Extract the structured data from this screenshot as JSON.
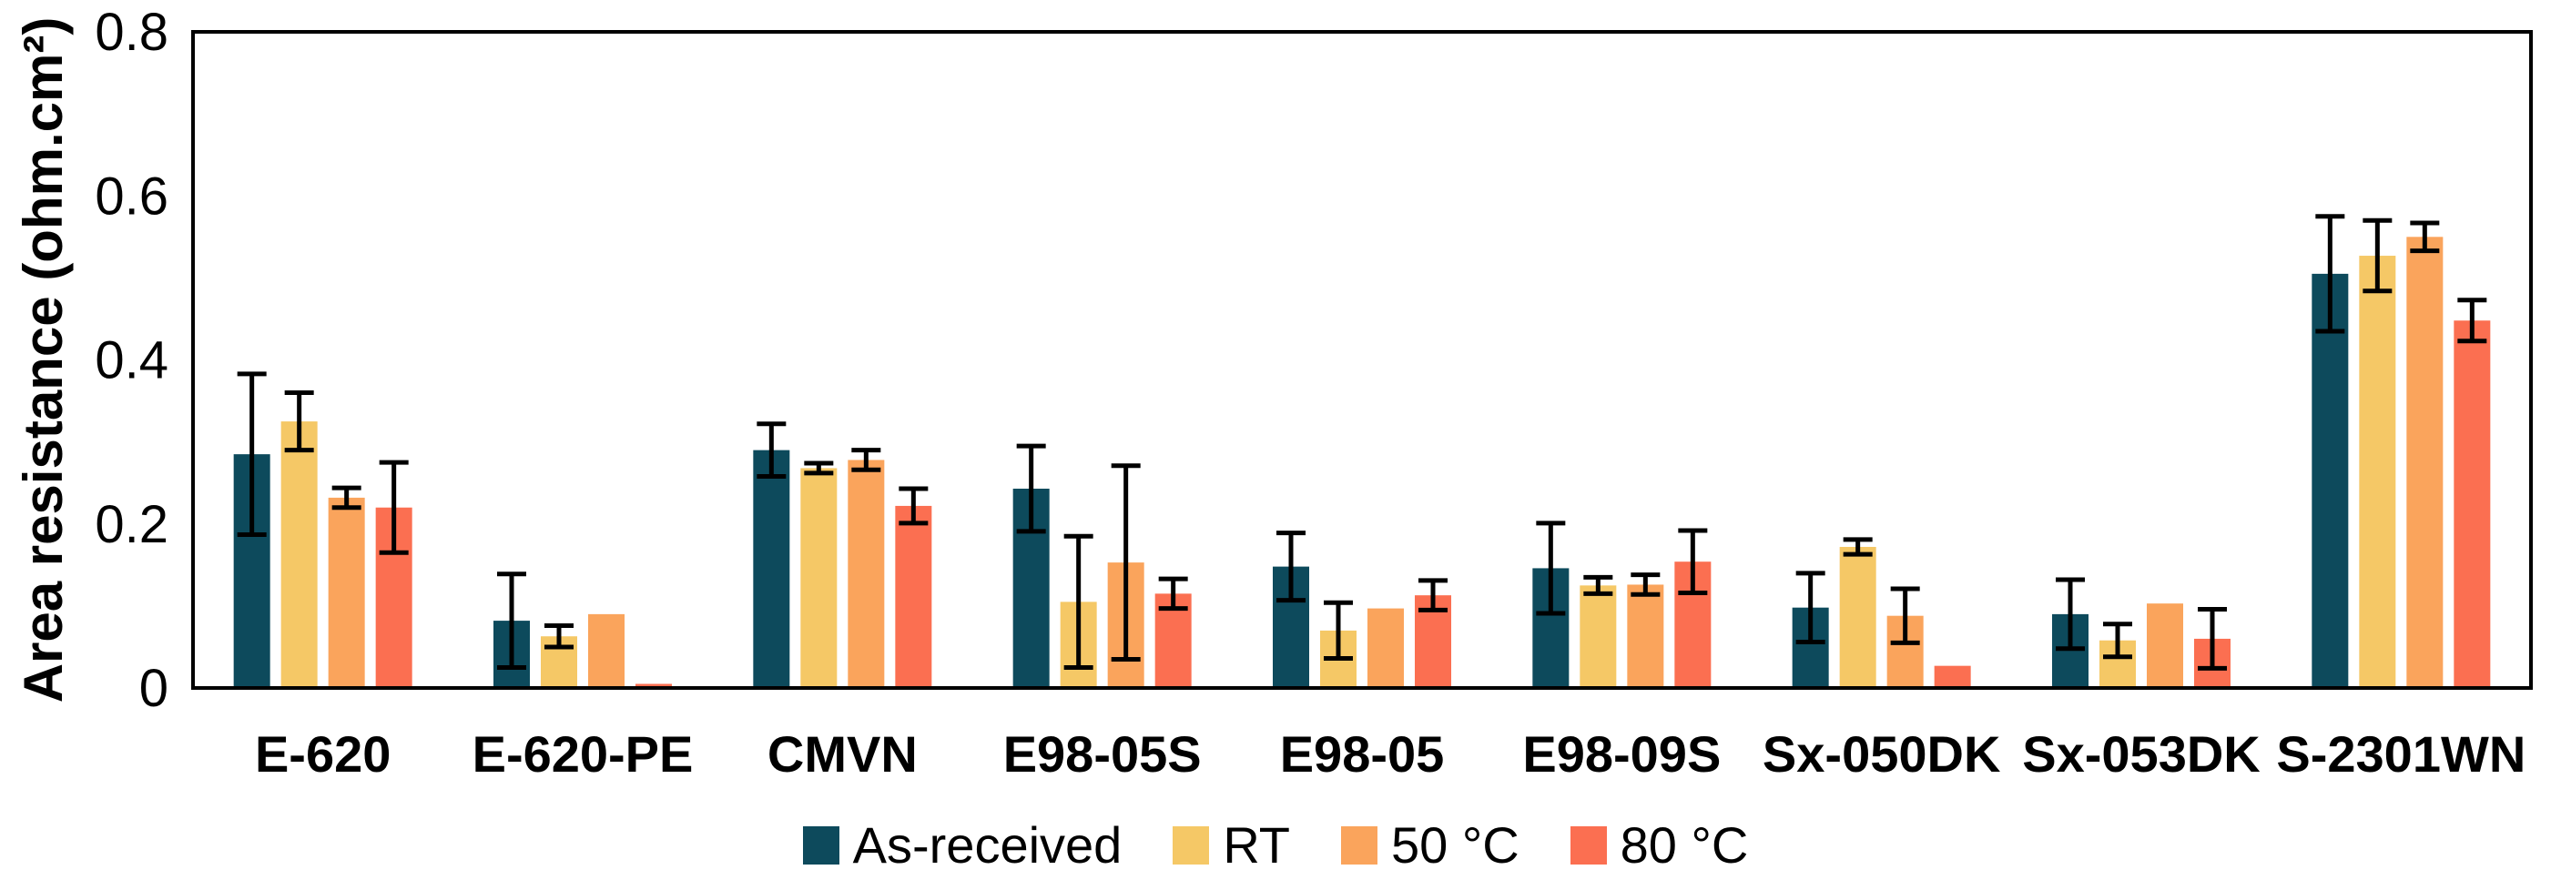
{
  "figure": {
    "background": "#ffffff",
    "frame_color": "#000000"
  },
  "chart_data": {
    "type": "bar",
    "title": "",
    "xlabel": "",
    "ylabel": "Area resistance (ohm.cm²)",
    "ylim": [
      0,
      0.8
    ],
    "grid": false,
    "legend_position": "bottom-center",
    "error_bars": true,
    "yticks": [
      {
        "value": 0,
        "label": "0"
      },
      {
        "value": 0.2,
        "label": "0.2"
      },
      {
        "value": 0.4,
        "label": "0.4"
      },
      {
        "value": 0.6,
        "label": "0.6"
      },
      {
        "value": 0.8,
        "label": "0.8"
      }
    ],
    "categories": [
      "E-620",
      "E-620-PE",
      "CMVN",
      "E98-05S",
      "E98-05",
      "E98-09S",
      "Sx-050DK",
      "Sx-053DK",
      "S-2301WN"
    ],
    "series": [
      {
        "name": "As-received",
        "color": "#0D4A5C",
        "values": [
          0.285,
          0.082,
          0.29,
          0.243,
          0.148,
          0.146,
          0.098,
          0.09,
          0.505
        ],
        "errors": [
          0.098,
          0.057,
          0.032,
          0.052,
          0.041,
          0.055,
          0.042,
          0.042,
          0.07
        ]
      },
      {
        "name": "RT",
        "color": "#F5C866",
        "values": [
          0.325,
          0.063,
          0.268,
          0.105,
          0.07,
          0.125,
          0.172,
          0.058,
          0.527
        ],
        "errors": [
          0.035,
          0.013,
          0.006,
          0.08,
          0.034,
          0.01,
          0.009,
          0.02,
          0.043
        ]
      },
      {
        "name": "50 °C",
        "color": "#FAA45C",
        "values": [
          0.232,
          0.09,
          0.278,
          0.153,
          0.097,
          0.126,
          0.088,
          0.103,
          0.55
        ],
        "errors": [
          0.012,
          0,
          0.012,
          0.118,
          0,
          0.012,
          0.033,
          0,
          0.017
        ]
      },
      {
        "name": "80 °C",
        "color": "#FB6F51",
        "values": [
          0.22,
          0.005,
          0.222,
          0.115,
          0.113,
          0.154,
          0.027,
          0.06,
          0.448
        ],
        "errors": [
          0.055,
          0,
          0.021,
          0.018,
          0.018,
          0.038,
          0,
          0.036,
          0.025
        ]
      }
    ]
  }
}
